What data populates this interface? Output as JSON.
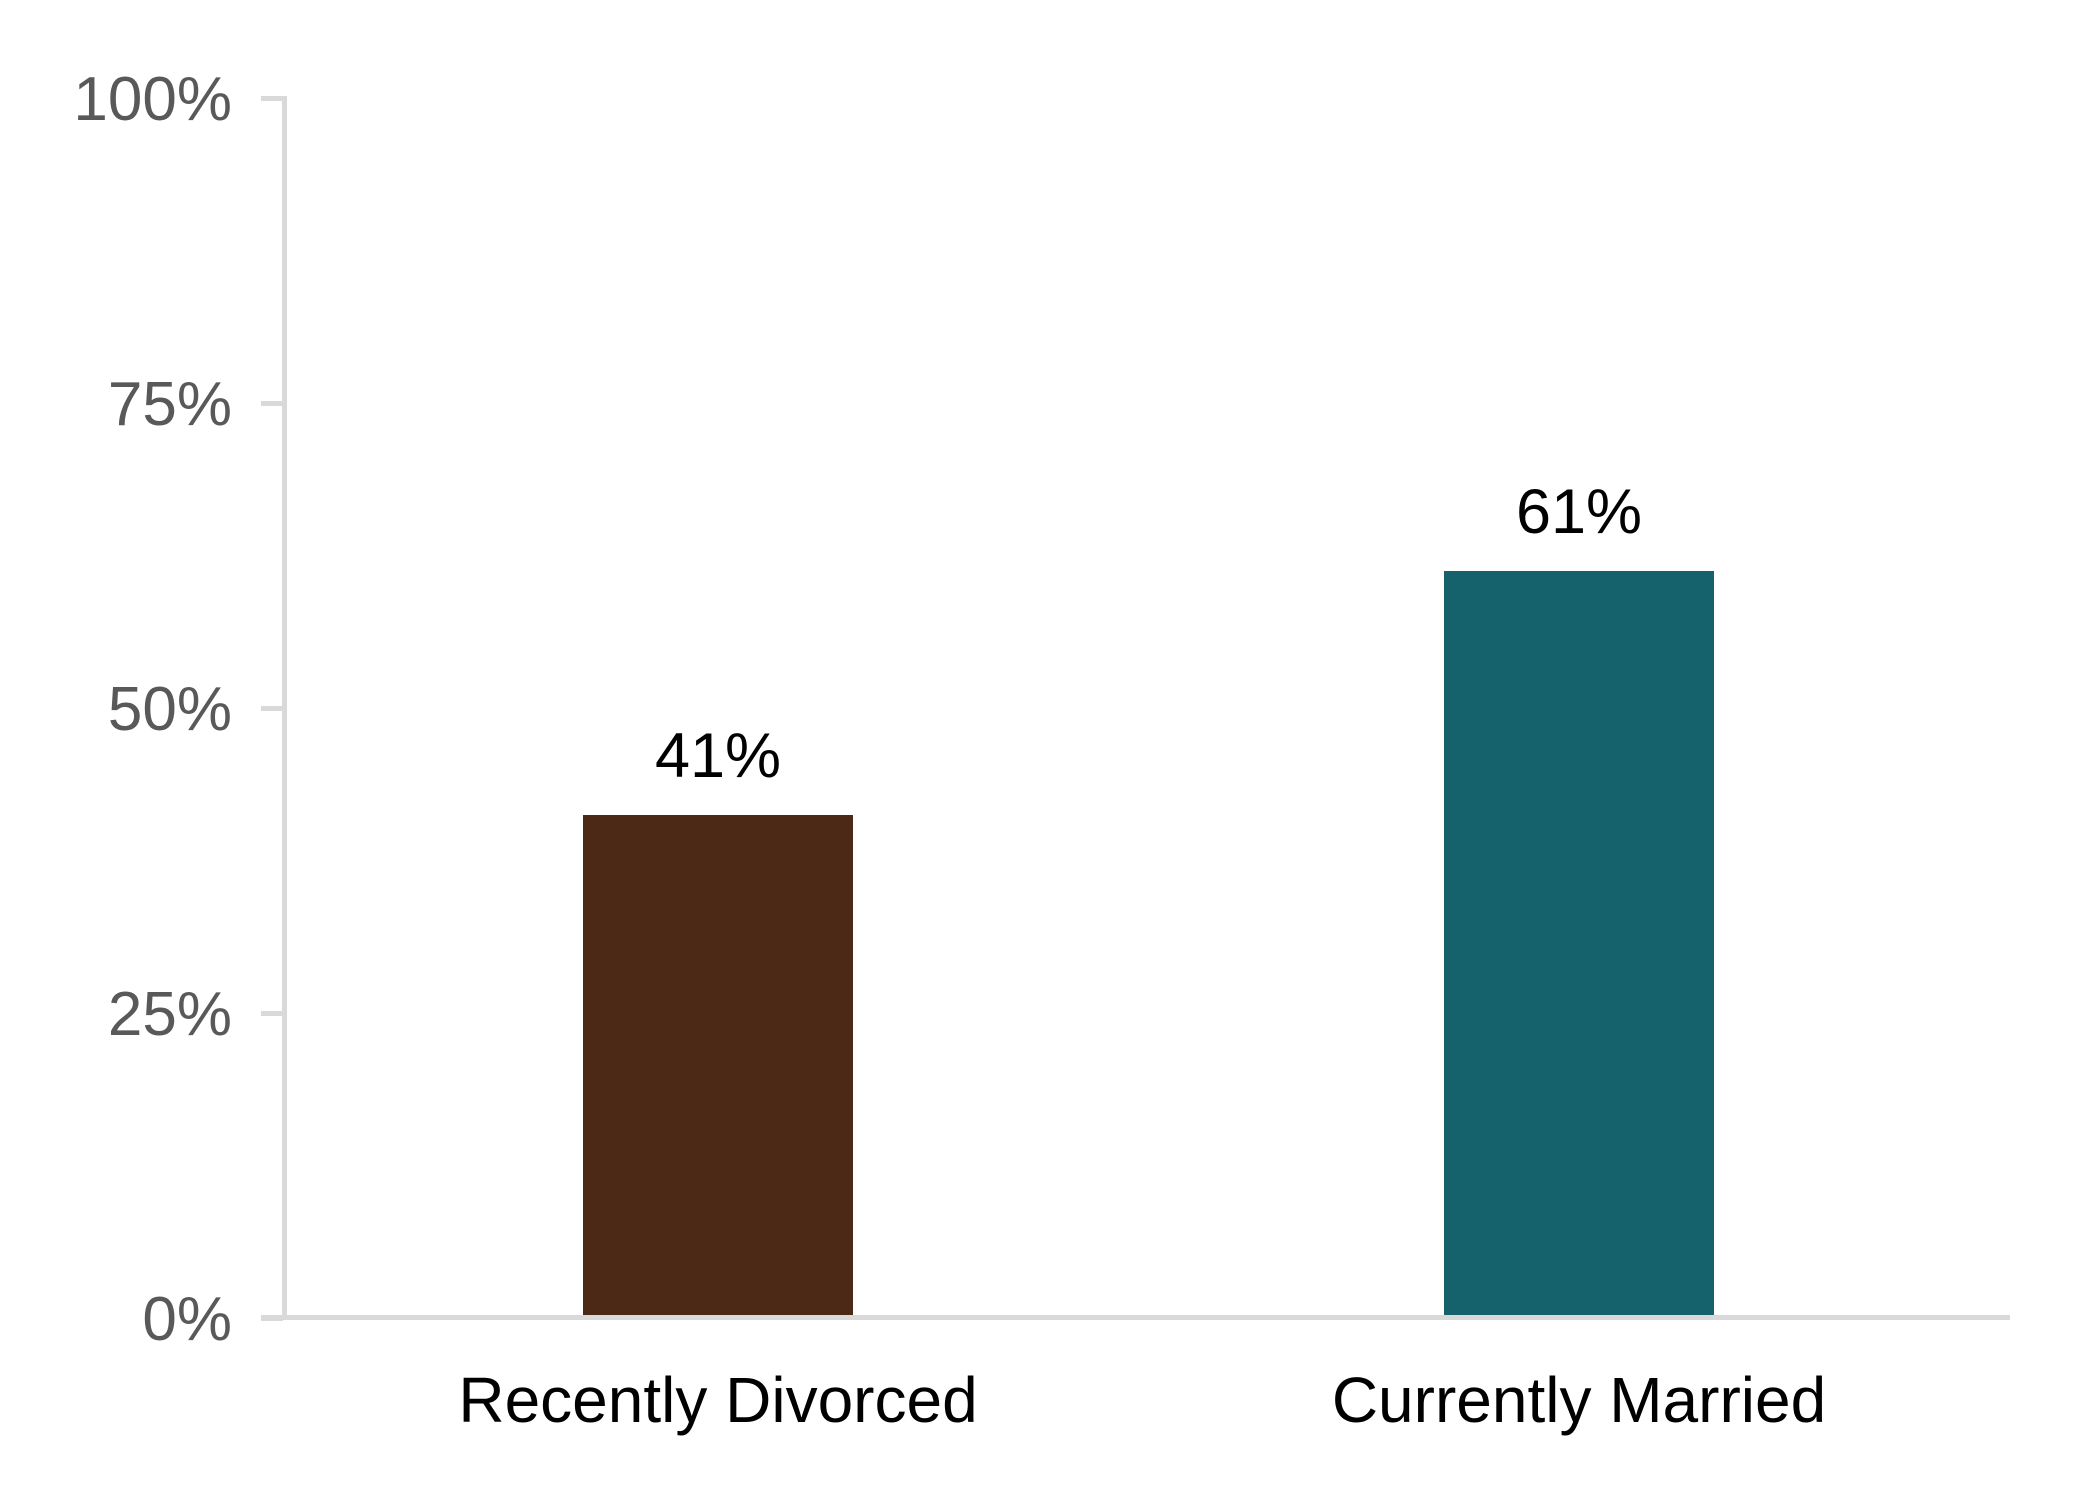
{
  "chart_data": {
    "type": "bar",
    "title": "",
    "xlabel": "",
    "ylabel": "",
    "categories": [
      "Recently Divorced",
      "Currently Married"
    ],
    "values": [
      41,
      61
    ],
    "value_labels": [
      "41%",
      "61%"
    ],
    "bar_colors": [
      "#4C2917",
      "#15616C"
    ],
    "yticks": [
      0,
      25,
      50,
      75,
      100
    ],
    "ytick_labels": [
      "0%",
      "25%",
      "50%",
      "75%",
      "100%"
    ],
    "ylim": [
      0,
      100
    ],
    "grid": "off",
    "legend": "none",
    "colors": {
      "axis_line": "#D9D9D9",
      "tick_label": "#595959",
      "value_label": "#000000",
      "category_label": "#000000",
      "background": "#FFFFFF"
    }
  }
}
